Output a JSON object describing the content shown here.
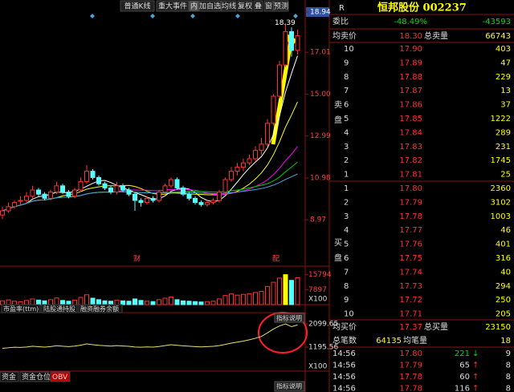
{
  "toolbar": {
    "buttons": [
      "普通K线",
      "重大事件",
      "内",
      "加自选",
      "均线",
      "复权",
      "叠",
      "窗",
      "预测"
    ]
  },
  "price_chart": {
    "type": "candlestick",
    "ylim": [
      6.9,
      18.94
    ],
    "yticks": [
      8.97,
      10.98,
      12.99,
      {
        "value": 15,
        "label": "15.00"
      },
      17.01,
      18.94
    ],
    "high_label": "18.39",
    "annotations": [
      "财",
      "配"
    ],
    "up_color": "#ff3232",
    "down_color": "#54ffff",
    "candles": [
      {
        "o": 9.2,
        "h": 9.6,
        "l": 9.0,
        "c": 9.4
      },
      {
        "o": 9.4,
        "h": 9.8,
        "l": 9.3,
        "c": 9.6
      },
      {
        "o": 9.6,
        "h": 9.9,
        "l": 9.5,
        "c": 9.8
      },
      {
        "o": 9.9,
        "h": 10.1,
        "l": 9.7,
        "c": 9.9
      },
      {
        "o": 9.9,
        "h": 10.3,
        "l": 9.8,
        "c": 10.1
      },
      {
        "o": 10.1,
        "h": 10.6,
        "l": 10.0,
        "c": 10.4
      },
      {
        "o": 10.4,
        "h": 10.5,
        "l": 10.1,
        "c": 10.2
      },
      {
        "o": 10.2,
        "h": 10.3,
        "l": 9.9,
        "c": 10.0
      },
      {
        "o": 10.0,
        "h": 10.4,
        "l": 9.9,
        "c": 10.3
      },
      {
        "o": 10.3,
        "h": 10.8,
        "l": 10.2,
        "c": 10.6
      },
      {
        "o": 10.6,
        "h": 10.7,
        "l": 10.2,
        "c": 10.3
      },
      {
        "o": 10.3,
        "h": 10.4,
        "l": 10.0,
        "c": 10.1
      },
      {
        "o": 10.1,
        "h": 10.5,
        "l": 10.0,
        "c": 10.4
      },
      {
        "o": 10.4,
        "h": 11.0,
        "l": 10.3,
        "c": 10.8
      },
      {
        "o": 10.8,
        "h": 11.6,
        "l": 10.7,
        "c": 11.3
      },
      {
        "o": 11.3,
        "h": 11.4,
        "l": 10.9,
        "c": 11.0
      },
      {
        "o": 11.0,
        "h": 11.1,
        "l": 10.6,
        "c": 10.7
      },
      {
        "o": 10.7,
        "h": 10.8,
        "l": 10.4,
        "c": 10.5
      },
      {
        "o": 10.5,
        "h": 10.6,
        "l": 10.2,
        "c": 10.3
      },
      {
        "o": 10.3,
        "h": 10.8,
        "l": 10.2,
        "c": 10.6
      },
      {
        "o": 10.6,
        "h": 10.7,
        "l": 10.3,
        "c": 10.4
      },
      {
        "o": 10.4,
        "h": 10.5,
        "l": 10.1,
        "c": 10.2
      },
      {
        "o": 10.2,
        "h": 10.3,
        "l": 9.4,
        "c": 9.9
      },
      {
        "o": 9.9,
        "h": 10.0,
        "l": 9.6,
        "c": 9.8
      },
      {
        "o": 9.8,
        "h": 10.1,
        "l": 9.7,
        "c": 10.0
      },
      {
        "o": 10.0,
        "h": 10.1,
        "l": 9.8,
        "c": 9.9
      },
      {
        "o": 9.9,
        "h": 10.4,
        "l": 9.8,
        "c": 10.3
      },
      {
        "o": 10.3,
        "h": 10.7,
        "l": 10.2,
        "c": 10.6
      },
      {
        "o": 10.6,
        "h": 11.0,
        "l": 10.5,
        "c": 10.9
      },
      {
        "o": 10.9,
        "h": 11.0,
        "l": 10.4,
        "c": 10.5
      },
      {
        "o": 10.5,
        "h": 10.6,
        "l": 10.1,
        "c": 10.2
      },
      {
        "o": 10.2,
        "h": 10.3,
        "l": 9.9,
        "c": 10.0
      },
      {
        "o": 10.0,
        "h": 10.1,
        "l": 9.7,
        "c": 9.8
      },
      {
        "o": 9.8,
        "h": 9.9,
        "l": 9.6,
        "c": 9.7
      },
      {
        "o": 9.7,
        "h": 9.9,
        "l": 9.6,
        "c": 9.8
      },
      {
        "o": 9.8,
        "h": 10.0,
        "l": 9.7,
        "c": 9.9
      },
      {
        "o": 9.9,
        "h": 10.4,
        "l": 9.8,
        "c": 10.3
      },
      {
        "o": 10.3,
        "h": 11.0,
        "l": 10.2,
        "c": 10.9
      },
      {
        "o": 10.9,
        "h": 11.5,
        "l": 10.8,
        "c": 11.3
      },
      {
        "o": 11.3,
        "h": 11.7,
        "l": 11.1,
        "c": 11.5
      },
      {
        "o": 11.5,
        "h": 11.9,
        "l": 11.3,
        "c": 11.7
      },
      {
        "o": 11.7,
        "h": 12.1,
        "l": 11.6,
        "c": 11.9
      },
      {
        "o": 11.9,
        "h": 12.5,
        "l": 11.8,
        "c": 12.3
      },
      {
        "o": 12.3,
        "h": 12.9,
        "l": 12.1,
        "c": 12.6
      },
      {
        "o": 12.6,
        "h": 13.8,
        "l": 12.5,
        "c": 13.6
      },
      {
        "o": 13.6,
        "h": 15.0,
        "l": 13.5,
        "c": 14.9
      },
      {
        "o": 14.9,
        "h": 16.6,
        "l": 14.8,
        "c": 16.4
      },
      {
        "o": 16.4,
        "h": 18.39,
        "l": 16.3,
        "c": 18.0
      },
      {
        "o": 18.0,
        "h": 18.2,
        "l": 16.8,
        "c": 17.1
      },
      {
        "o": 17.1,
        "h": 18.1,
        "l": 16.9,
        "c": 17.8
      }
    ]
  },
  "volume_chart": {
    "type": "bar",
    "ylim": [
      0,
      18600
    ],
    "yticks": [
      15794,
      7897
    ],
    "unit": "X100",
    "values": [
      2000,
      2500,
      1800,
      1500,
      2200,
      3000,
      2400,
      2000,
      2600,
      3500,
      2200,
      1800,
      2400,
      3800,
      5200,
      3400,
      2600,
      2000,
      1800,
      2400,
      2000,
      1800,
      3000,
      2200,
      1800,
      1600,
      2600,
      3400,
      4000,
      2600,
      2000,
      1800,
      1600,
      1400,
      1600,
      1800,
      3000,
      4800,
      5600,
      5000,
      5400,
      5800,
      6400,
      7000,
      9600,
      11800,
      14000,
      15794,
      12800,
      14200
    ]
  },
  "tabs": [
    "市盈率(ttm)",
    "陆股通持股",
    "融资融券余额"
  ],
  "indicator_chart": {
    "type": "line",
    "button": "指标说明",
    "ylim": [
      291,
      2474
    ],
    "yticks": [
      2099.65,
      1195.56
    ],
    "unit": "X100",
    "color": "#e8e070",
    "values": [
      1150,
      1170,
      1190,
      1185,
      1200,
      1230,
      1210,
      1195,
      1215,
      1250,
      1230,
      1215,
      1235,
      1270,
      1320,
      1290,
      1265,
      1250,
      1235,
      1255,
      1240,
      1225,
      1200,
      1190,
      1205,
      1195,
      1220,
      1255,
      1290,
      1265,
      1245,
      1230,
      1215,
      1205,
      1215,
      1225,
      1255,
      1300,
      1350,
      1390,
      1430,
      1480,
      1540,
      1610,
      1750,
      1900,
      2020,
      2100,
      1990,
      2060
    ]
  },
  "bottom_tabs": [
    "资金",
    "资金仓位",
    "OBV"
  ],
  "bottom_button": "指标说明",
  "quote": {
    "tag": "R",
    "name": "恒邦股份 002237",
    "weibi_label": "委比",
    "weibi_pct": "-48.49%",
    "weibi_diff": "-43593",
    "avg_sell_label": "均卖价",
    "avg_sell": "18.30",
    "total_sell_label": "总卖量",
    "total_sell": 66743,
    "sell_side": [
      "卖",
      "盘"
    ],
    "sell": [
      {
        "level": 10,
        "price": "17.90",
        "volume": 403
      },
      {
        "level": 9,
        "price": "17.89",
        "volume": 47
      },
      {
        "level": 8,
        "price": "17.88",
        "volume": 229
      },
      {
        "level": 7,
        "price": "17.87",
        "volume": 13
      },
      {
        "level": 6,
        "price": "17.86",
        "volume": 37
      },
      {
        "level": 5,
        "price": "17.85",
        "volume": 1222
      },
      {
        "level": 4,
        "price": "17.84",
        "volume": 289
      },
      {
        "level": 3,
        "price": "17.83",
        "volume": 231
      },
      {
        "level": 2,
        "price": "17.82",
        "volume": 1745
      },
      {
        "level": 1,
        "price": "17.81",
        "volume": 25
      }
    ],
    "buy_side": [
      "买",
      "盘"
    ],
    "buy": [
      {
        "level": 1,
        "price": "17.80",
        "volume": 2360
      },
      {
        "level": 2,
        "price": "17.79",
        "volume": 3102
      },
      {
        "level": 3,
        "price": "17.78",
        "volume": 1003
      },
      {
        "level": 4,
        "price": "17.77",
        "volume": 46
      },
      {
        "level": 5,
        "price": "17.76",
        "volume": 401
      },
      {
        "level": 6,
        "price": "17.75",
        "volume": 316
      },
      {
        "level": 7,
        "price": "17.74",
        "volume": 40
      },
      {
        "level": 8,
        "price": "17.73",
        "volume": 294
      },
      {
        "level": 9,
        "price": "17.72",
        "volume": 250
      },
      {
        "level": 10,
        "price": "17.71",
        "volume": 205
      }
    ],
    "avg_buy_label": "均买价",
    "avg_buy": "17.37",
    "total_buy_label": "总买量",
    "total_buy": 23150,
    "trades_label": "总笔数",
    "trades": 64135,
    "avg_trade_label": "均笔量",
    "avg_trade": 18,
    "ticks": [
      {
        "time": "14:56",
        "price": "17.80",
        "volume": 221,
        "dir": "↓",
        "count": 9
      },
      {
        "time": "14:56",
        "price": "17.79",
        "volume": 65,
        "dir": "↑",
        "count": 8
      },
      {
        "time": "14:56",
        "price": "17.78",
        "volume": 60,
        "dir": "↑",
        "count": 8
      },
      {
        "time": "14:56",
        "price": "17.78",
        "volume": 116,
        "dir": "↑",
        "count": 8
      }
    ]
  }
}
